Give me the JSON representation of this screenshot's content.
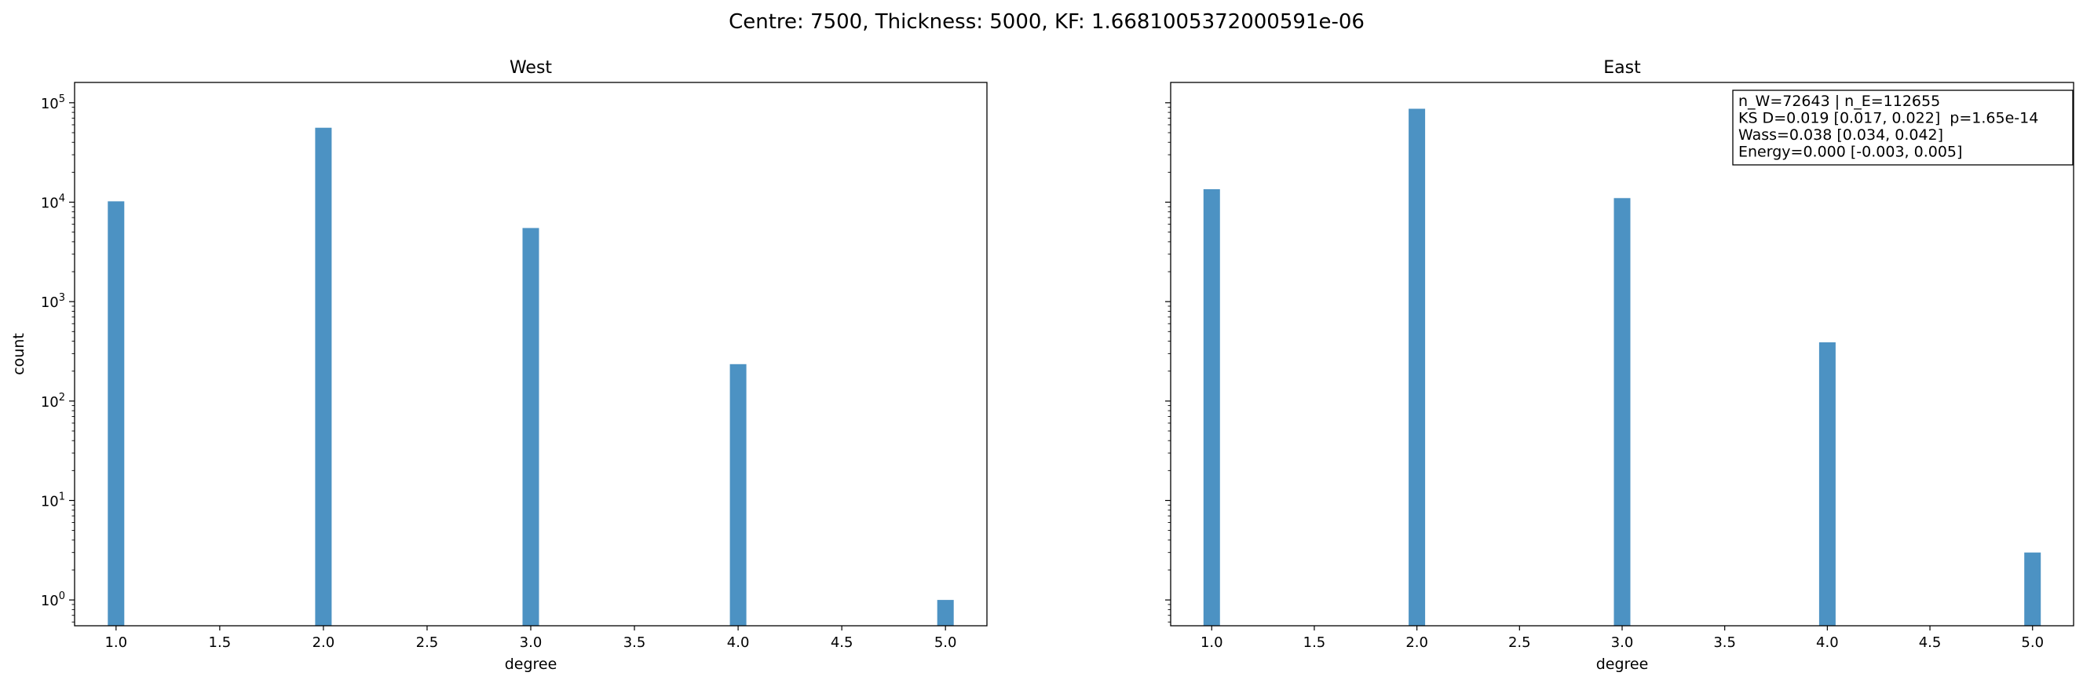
{
  "suptitle": "Centre: 7500, Thickness: 5000, KF: 1.6681005372000591e-06",
  "bar_color": "#1f77b4",
  "chart_data": [
    {
      "type": "bar",
      "title": "West",
      "xlabel": "degree",
      "ylabel": "count",
      "yscale": "log",
      "xlim": [
        0.8,
        5.2
      ],
      "ylim": [
        0.55,
        160000
      ],
      "xticks": [
        "1.0",
        "1.5",
        "2.0",
        "2.5",
        "3.0",
        "3.5",
        "4.0",
        "4.5",
        "5.0"
      ],
      "yticks": [
        {
          "base": "10",
          "exp": "0"
        },
        {
          "base": "10",
          "exp": "1"
        },
        {
          "base": "10",
          "exp": "2"
        },
        {
          "base": "10",
          "exp": "3"
        },
        {
          "base": "10",
          "exp": "4"
        },
        {
          "base": "10",
          "exp": "5"
        }
      ],
      "x": [
        1,
        2,
        3,
        4,
        5
      ],
      "values": [
        10200,
        56000,
        5500,
        235,
        1
      ],
      "stats": []
    },
    {
      "type": "bar",
      "title": "East",
      "xlabel": "degree",
      "ylabel": "",
      "yscale": "log",
      "xlim": [
        0.8,
        5.2
      ],
      "ylim": [
        0.55,
        160000
      ],
      "xticks": [
        "1.0",
        "1.5",
        "2.0",
        "2.5",
        "3.0",
        "3.5",
        "4.0",
        "4.5",
        "5.0"
      ],
      "yticks": [],
      "x": [
        1,
        2,
        3,
        4,
        5
      ],
      "values": [
        13500,
        87000,
        11000,
        390,
        3
      ],
      "stats": [
        "n_W=72643 | n_E=112655",
        "KS D=0.019 [0.017, 0.022]  p=1.65e-14",
        "Wass=0.038 [0.034, 0.042]",
        "Energy=0.000 [-0.003, 0.005]"
      ]
    }
  ]
}
